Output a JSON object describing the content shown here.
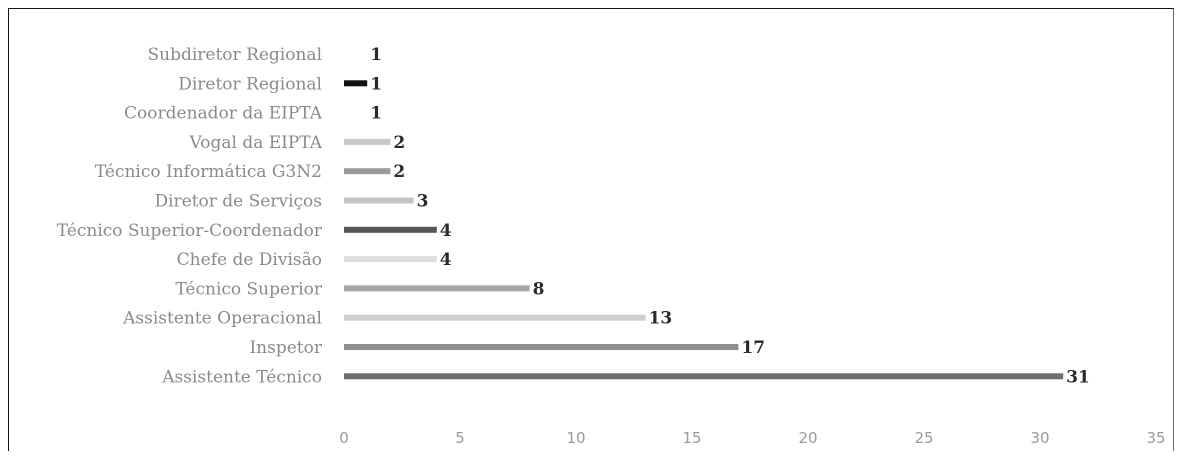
{
  "chart_data": {
    "type": "bar",
    "orientation": "horizontal",
    "categories": [
      "Subdiretor Regional",
      "Diretor Regional",
      "Coordenador da EIPTA",
      "Vogal da EIPTA",
      "Técnico Informática G3N2",
      "Diretor de Serviços",
      "Técnico Superior-Coordenador",
      "Chefe de Divisão",
      "Técnico Superior",
      "Assistente Operacional",
      "Inspetor",
      "Assistente Técnico"
    ],
    "values": [
      1,
      1,
      1,
      2,
      2,
      3,
      4,
      4,
      8,
      13,
      17,
      31
    ],
    "data_labels": [
      "1",
      "1",
      "1",
      "2",
      "2",
      "3",
      "4",
      "4",
      "8",
      "13",
      "17",
      "31"
    ],
    "bar_colors": [
      "#ffffff",
      "#111111",
      "#ffffff",
      "#c8c8c8",
      "#9a9a9a",
      "#c4c4c4",
      "#555555",
      "#dedede",
      "#a6a6a6",
      "#cfcfcf",
      "#8e8e8e",
      "#6e6e6e"
    ],
    "xlim": [
      0,
      35
    ],
    "x_ticks": [
      "0",
      "5",
      "10",
      "15",
      "20",
      "25",
      "30",
      "35"
    ],
    "title": "",
    "xlabel": "",
    "ylabel": "",
    "grid": false,
    "legend": "none"
  }
}
